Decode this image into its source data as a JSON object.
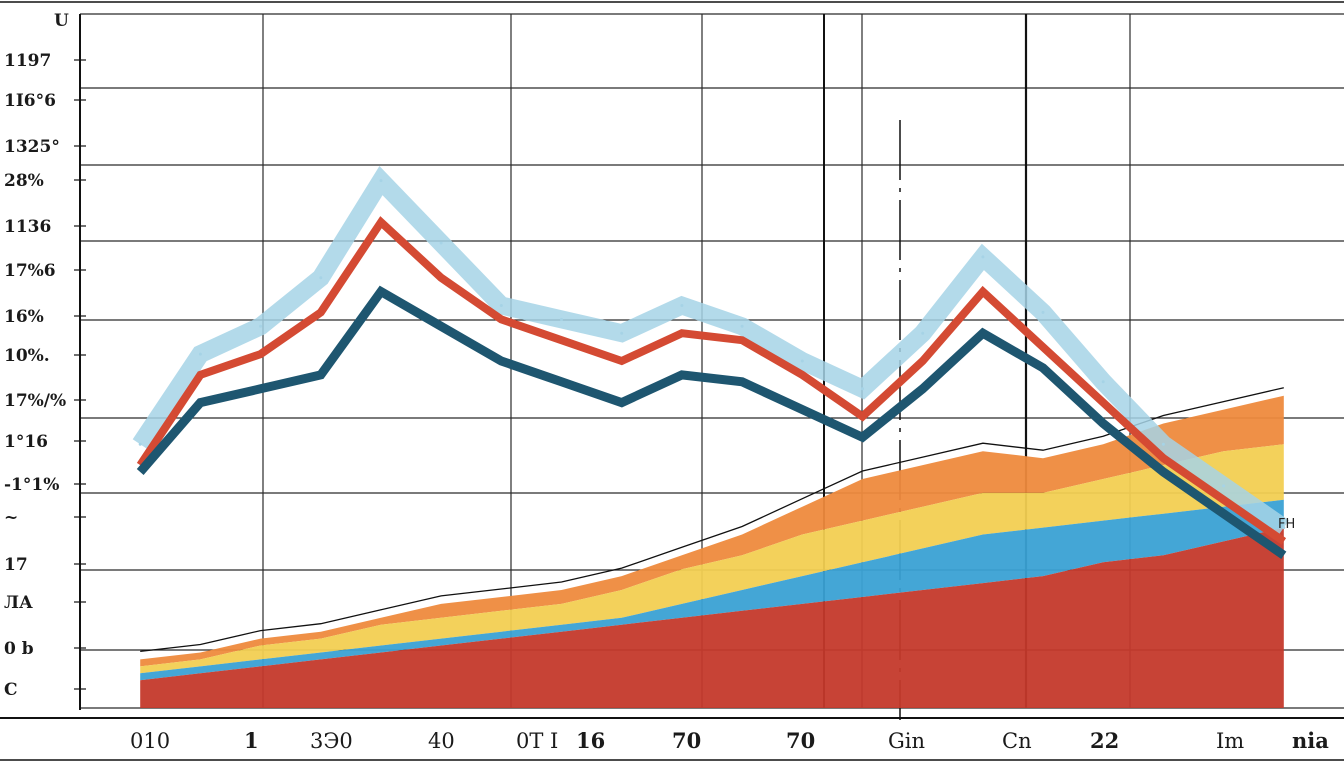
{
  "chart_data": {
    "type": "area",
    "title": "",
    "xlabel": "",
    "ylabel": "",
    "y_axis_top_label": "U",
    "y_tick_labels": [
      "1197",
      "1I6°6",
      "1325°",
      "28%",
      "1136",
      "17%6",
      "16%",
      "10%.",
      "17%/%",
      "1°16",
      "-1°1%",
      "~",
      "17",
      "ЛА",
      "0 b",
      "C"
    ],
    "x_tick_labels": [
      "010",
      "1",
      "3Э0",
      "40",
      "0T I",
      "16",
      "70",
      "70",
      "Gin",
      "Cn",
      "22",
      "Im",
      "nia"
    ],
    "annotation": "FH",
    "grid": true,
    "legend": "none",
    "x": [
      1,
      2,
      3,
      4,
      5,
      6,
      7,
      8,
      9,
      10,
      11,
      12,
      13,
      14,
      15,
      16,
      17,
      18,
      19,
      20
    ],
    "xlim": [
      0,
      21
    ],
    "ylim": [
      0,
      100
    ],
    "series": [
      {
        "values": [
          38,
          51,
          55,
          62,
          76,
          67,
          58,
          56,
          54,
          58,
          55,
          50,
          46,
          54,
          65,
          57,
          47,
          38,
          32,
          26
        ],
        "color": "#a6d3e6"
      },
      {
        "values": [
          35,
          48,
          51,
          57,
          70,
          62,
          56,
          53,
          50,
          54,
          53,
          48,
          42,
          50,
          60,
          52,
          44,
          36,
          30,
          24
        ],
        "color": "#d44a33"
      },
      {
        "values": [
          34,
          44,
          46,
          48,
          60,
          55,
          50,
          47,
          44,
          48,
          47,
          43,
          39,
          46,
          54,
          49,
          41,
          34,
          28,
          22
        ],
        "color": "#1e5670"
      }
    ],
    "stacked_series": [
      {
        "values": [
          4,
          5,
          6,
          7,
          8,
          9,
          10,
          11,
          12,
          13,
          14,
          15,
          16,
          17,
          18,
          19,
          21,
          22,
          24,
          26
        ],
        "color": "#c4392b"
      },
      {
        "values": [
          5,
          6,
          7,
          8,
          9,
          10,
          11,
          12,
          13,
          15,
          17,
          19,
          21,
          23,
          25,
          26,
          27,
          28,
          29,
          30
        ],
        "color": "#3aa1d4"
      },
      {
        "values": [
          6,
          7,
          9,
          10,
          12,
          13,
          14,
          15,
          17,
          20,
          22,
          25,
          27,
          29,
          31,
          31,
          33,
          35,
          37,
          38
        ],
        "color": "#f2cf52"
      },
      {
        "values": [
          7,
          8,
          10,
          11,
          13,
          15,
          16,
          17,
          19,
          22,
          25,
          29,
          33,
          35,
          37,
          36,
          38,
          41,
          43,
          45
        ],
        "color": "#ee8a3d"
      }
    ]
  }
}
